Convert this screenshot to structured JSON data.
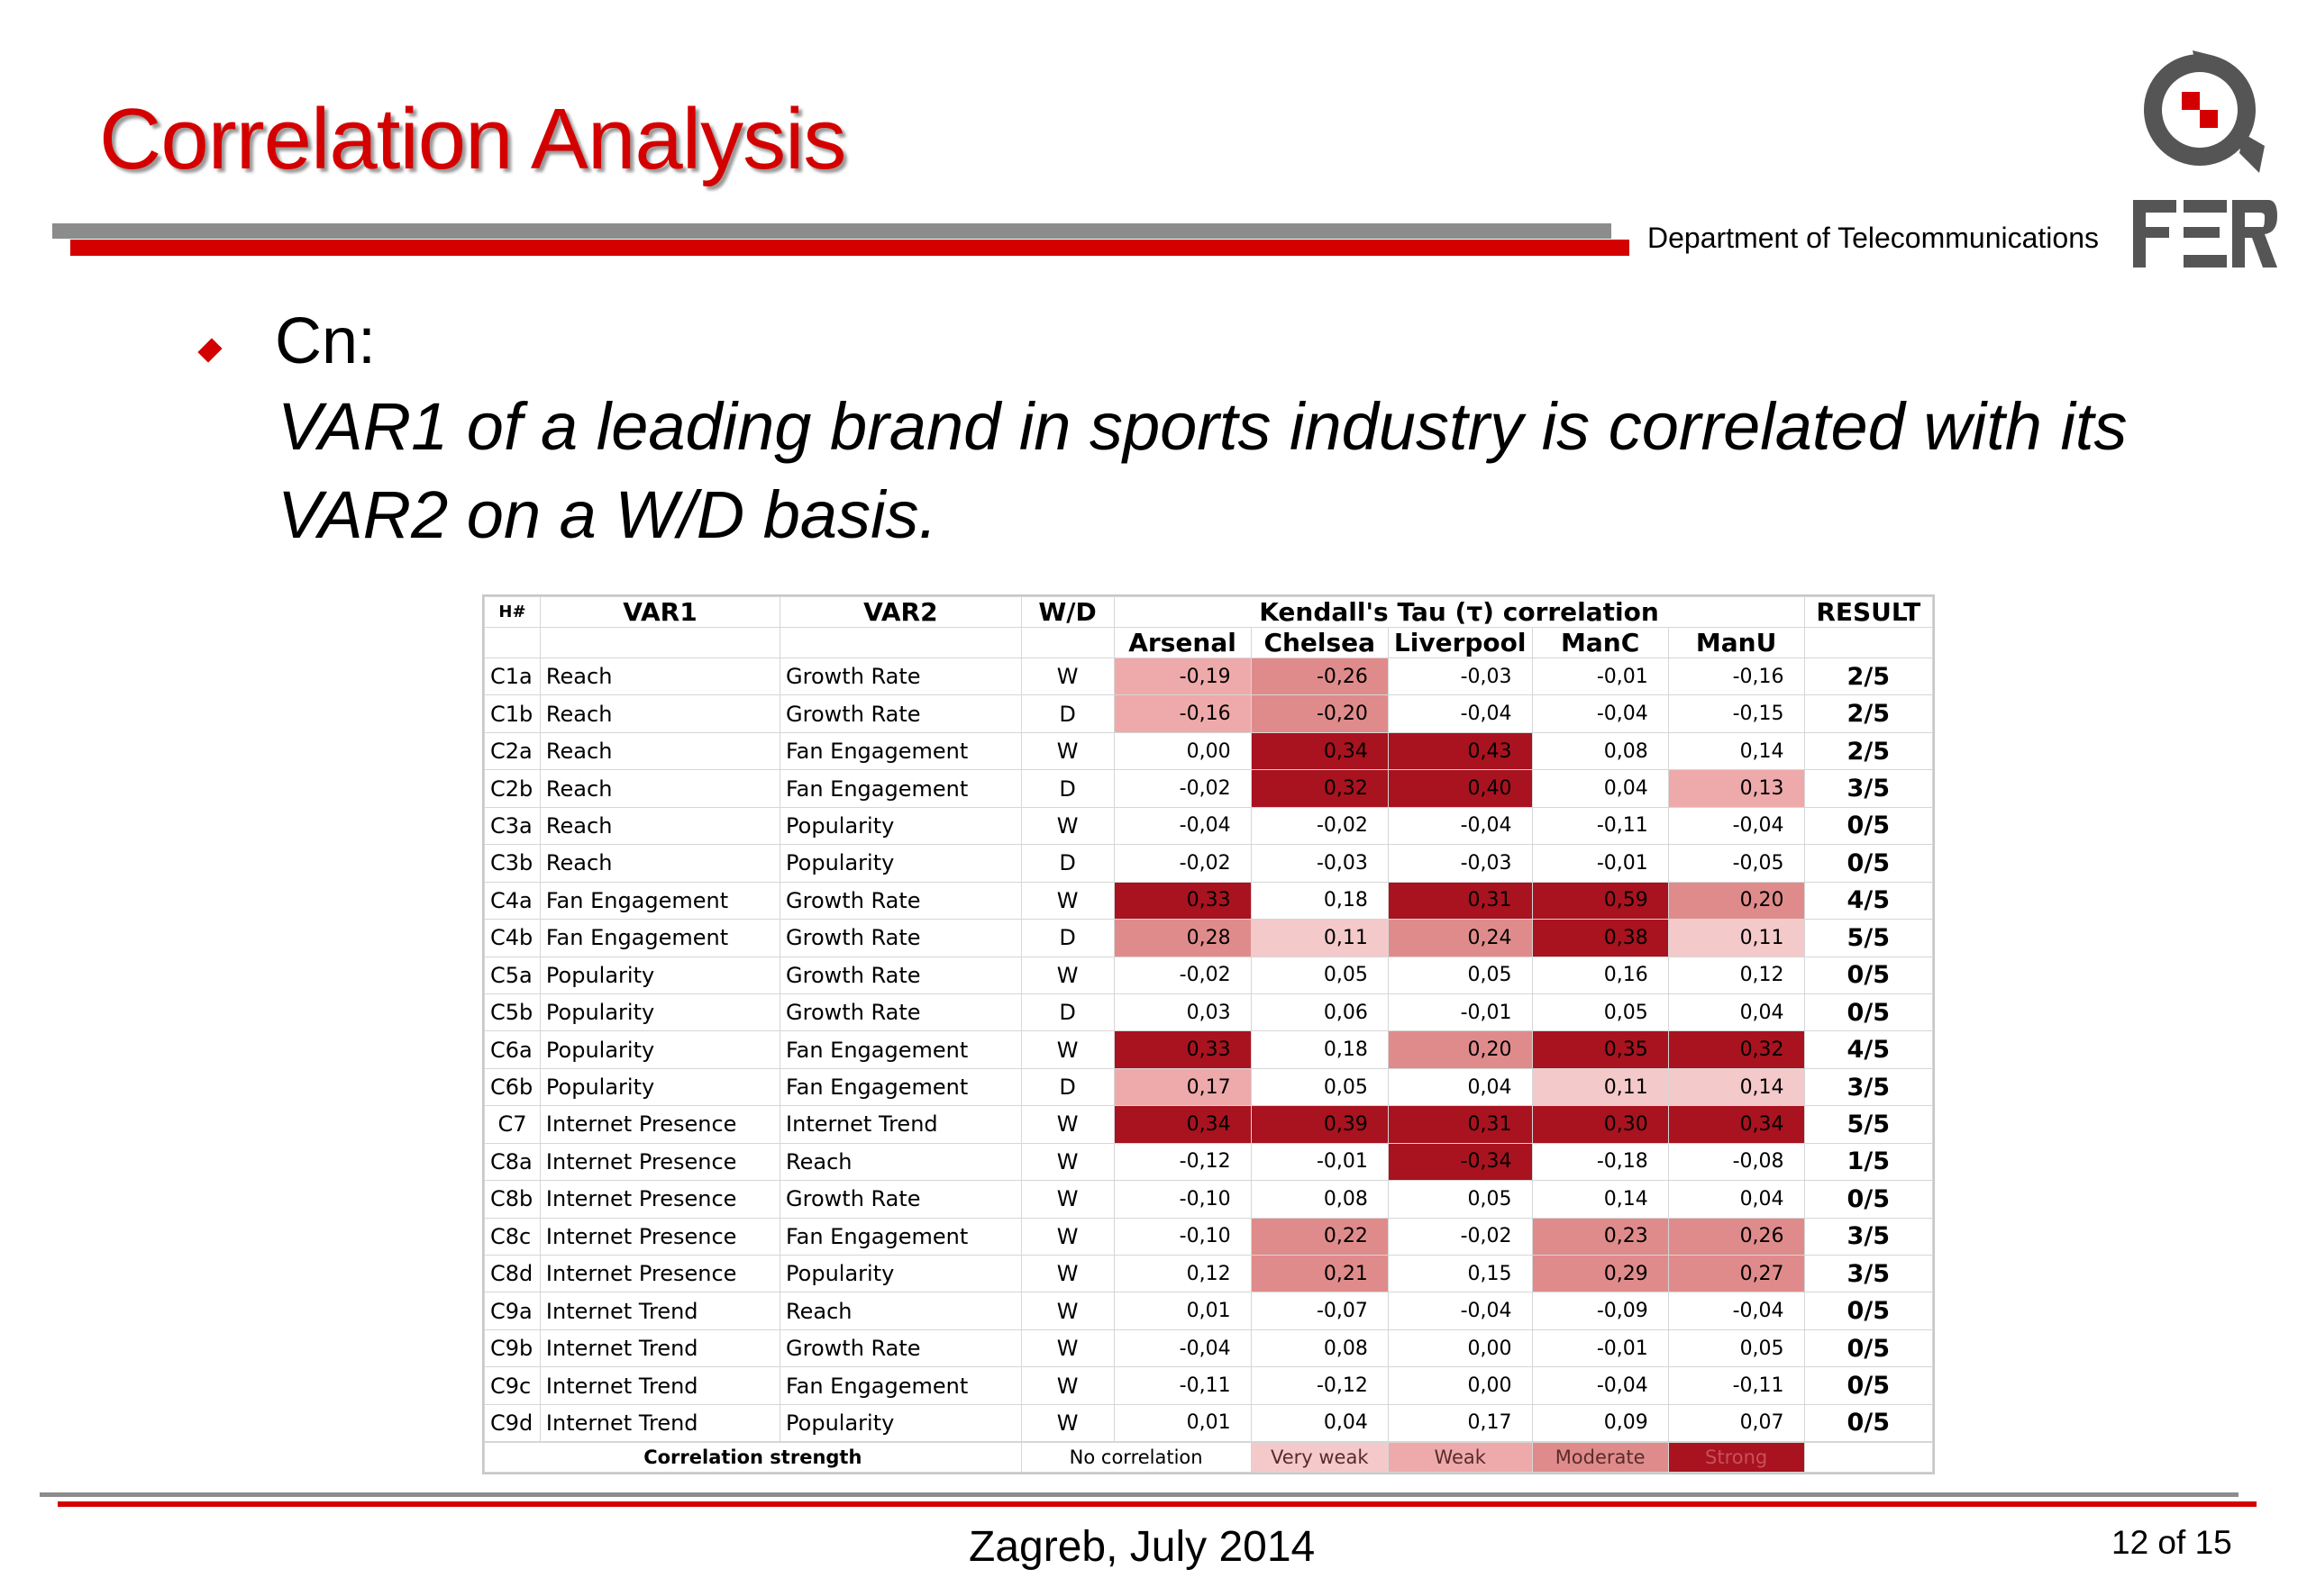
{
  "slide": {
    "title": "Correlation Analysis",
    "department": "Department of Telecommunications",
    "bullet_label": "Cn:",
    "hypothesis": "VAR1 of a leading brand in sports industry is correlated with its VAR2 on a W/D basis.",
    "footer": "Zagreb, July 2014",
    "page": "12 of 15"
  },
  "colors": {
    "accent_red": "#d40000",
    "very_weak": "#f4c9c9",
    "weak": "#eeaaaa",
    "moderate": "#e08b8b",
    "strong": "#a8131f"
  },
  "table": {
    "headers": {
      "h": "H#",
      "var1": "VAR1",
      "var2": "VAR2",
      "wd": "W/D",
      "kendall": "Kendall's Tau (τ) correlation",
      "result": "RESULT",
      "clubs": [
        "Arsenal",
        "Chelsea",
        "Liverpool",
        "ManC",
        "ManU"
      ]
    },
    "rows": [
      {
        "id": "C1a",
        "var1": "Reach",
        "var2": "Growth Rate",
        "wd": "W",
        "values": [
          "-0,19",
          "-0,26",
          "-0,03",
          "-0,01",
          "-0,16"
        ],
        "levels": [
          "weak",
          "moderate",
          "none",
          "none",
          "none"
        ],
        "result": "2/5"
      },
      {
        "id": "C1b",
        "var1": "Reach",
        "var2": "Growth Rate",
        "wd": "D",
        "values": [
          "-0,16",
          "-0,20",
          "-0,04",
          "-0,04",
          "-0,15"
        ],
        "levels": [
          "weak",
          "moderate",
          "none",
          "none",
          "none"
        ],
        "result": "2/5"
      },
      {
        "id": "C2a",
        "var1": "Reach",
        "var2": "Fan Engagement",
        "wd": "W",
        "values": [
          "0,00",
          "0,34",
          "0,43",
          "0,08",
          "0,14"
        ],
        "levels": [
          "none",
          "strong",
          "strong",
          "none",
          "none"
        ],
        "result": "2/5"
      },
      {
        "id": "C2b",
        "var1": "Reach",
        "var2": "Fan Engagement",
        "wd": "D",
        "values": [
          "-0,02",
          "0,32",
          "0,40",
          "0,04",
          "0,13"
        ],
        "levels": [
          "none",
          "strong",
          "strong",
          "none",
          "weak"
        ],
        "result": "3/5"
      },
      {
        "id": "C3a",
        "var1": "Reach",
        "var2": "Popularity",
        "wd": "W",
        "values": [
          "-0,04",
          "-0,02",
          "-0,04",
          "-0,11",
          "-0,04"
        ],
        "levels": [
          "none",
          "none",
          "none",
          "none",
          "none"
        ],
        "result": "0/5"
      },
      {
        "id": "C3b",
        "var1": "Reach",
        "var2": "Popularity",
        "wd": "D",
        "values": [
          "-0,02",
          "-0,03",
          "-0,03",
          "-0,01",
          "-0,05"
        ],
        "levels": [
          "none",
          "none",
          "none",
          "none",
          "none"
        ],
        "result": "0/5"
      },
      {
        "id": "C4a",
        "var1": "Fan Engagement",
        "var2": "Growth Rate",
        "wd": "W",
        "values": [
          "0,33",
          "0,18",
          "0,31",
          "0,59",
          "0,20"
        ],
        "levels": [
          "strong",
          "none",
          "strong",
          "strong",
          "moderate"
        ],
        "result": "4/5"
      },
      {
        "id": "C4b",
        "var1": "Fan Engagement",
        "var2": "Growth Rate",
        "wd": "D",
        "values": [
          "0,28",
          "0,11",
          "0,24",
          "0,38",
          "0,11"
        ],
        "levels": [
          "moderate",
          "very_weak",
          "moderate",
          "strong",
          "very_weak"
        ],
        "result": "5/5"
      },
      {
        "id": "C5a",
        "var1": "Popularity",
        "var2": "Growth Rate",
        "wd": "W",
        "values": [
          "-0,02",
          "0,05",
          "0,05",
          "0,16",
          "0,12"
        ],
        "levels": [
          "none",
          "none",
          "none",
          "none",
          "none"
        ],
        "result": "0/5"
      },
      {
        "id": "C5b",
        "var1": "Popularity",
        "var2": "Growth Rate",
        "wd": "D",
        "values": [
          "0,03",
          "0,06",
          "-0,01",
          "0,05",
          "0,04"
        ],
        "levels": [
          "none",
          "none",
          "none",
          "none",
          "none"
        ],
        "result": "0/5"
      },
      {
        "id": "C6a",
        "var1": "Popularity",
        "var2": "Fan Engagement",
        "wd": "W",
        "values": [
          "0,33",
          "0,18",
          "0,20",
          "0,35",
          "0,32"
        ],
        "levels": [
          "strong",
          "none",
          "moderate",
          "strong",
          "strong"
        ],
        "result": "4/5"
      },
      {
        "id": "C6b",
        "var1": "Popularity",
        "var2": "Fan Engagement",
        "wd": "D",
        "values": [
          "0,17",
          "0,05",
          "0,04",
          "0,11",
          "0,14"
        ],
        "levels": [
          "weak",
          "none",
          "none",
          "very_weak",
          "very_weak"
        ],
        "result": "3/5"
      },
      {
        "id": "C7",
        "var1": "Internet Presence",
        "var2": "Internet Trend",
        "wd": "W",
        "values": [
          "0,34",
          "0,39",
          "0,31",
          "0,30",
          "0,34"
        ],
        "levels": [
          "strong",
          "strong",
          "strong",
          "strong",
          "strong"
        ],
        "result": "5/5"
      },
      {
        "id": "C8a",
        "var1": "Internet Presence",
        "var2": "Reach",
        "wd": "W",
        "values": [
          "-0,12",
          "-0,01",
          "-0,34",
          "-0,18",
          "-0,08"
        ],
        "levels": [
          "none",
          "none",
          "strong",
          "none",
          "none"
        ],
        "result": "1/5"
      },
      {
        "id": "C8b",
        "var1": "Internet Presence",
        "var2": "Growth Rate",
        "wd": "W",
        "values": [
          "-0,10",
          "0,08",
          "0,05",
          "0,14",
          "0,04"
        ],
        "levels": [
          "none",
          "none",
          "none",
          "none",
          "none"
        ],
        "result": "0/5"
      },
      {
        "id": "C8c",
        "var1": "Internet Presence",
        "var2": "Fan Engagement",
        "wd": "W",
        "values": [
          "-0,10",
          "0,22",
          "-0,02",
          "0,23",
          "0,26"
        ],
        "levels": [
          "none",
          "moderate",
          "none",
          "moderate",
          "moderate"
        ],
        "result": "3/5"
      },
      {
        "id": "C8d",
        "var1": "Internet Presence",
        "var2": "Popularity",
        "wd": "W",
        "values": [
          "0,12",
          "0,21",
          "0,15",
          "0,29",
          "0,27"
        ],
        "levels": [
          "none",
          "moderate",
          "none",
          "moderate",
          "moderate"
        ],
        "result": "3/5"
      },
      {
        "id": "C9a",
        "var1": "Internet Trend",
        "var2": "Reach",
        "wd": "W",
        "values": [
          "0,01",
          "-0,07",
          "-0,04",
          "-0,09",
          "-0,04"
        ],
        "levels": [
          "none",
          "none",
          "none",
          "none",
          "none"
        ],
        "result": "0/5"
      },
      {
        "id": "C9b",
        "var1": "Internet Trend",
        "var2": "Growth Rate",
        "wd": "W",
        "values": [
          "-0,04",
          "0,08",
          "0,00",
          "-0,01",
          "0,05"
        ],
        "levels": [
          "none",
          "none",
          "none",
          "none",
          "none"
        ],
        "result": "0/5"
      },
      {
        "id": "C9c",
        "var1": "Internet Trend",
        "var2": "Fan Engagement",
        "wd": "W",
        "values": [
          "-0,11",
          "-0,12",
          "0,00",
          "-0,04",
          "-0,11"
        ],
        "levels": [
          "none",
          "none",
          "none",
          "none",
          "none"
        ],
        "result": "0/5"
      },
      {
        "id": "C9d",
        "var1": "Internet Trend",
        "var2": "Popularity",
        "wd": "W",
        "values": [
          "0,01",
          "0,04",
          "0,17",
          "0,09",
          "0,07"
        ],
        "levels": [
          "none",
          "none",
          "none",
          "none",
          "none"
        ],
        "result": "0/5"
      }
    ],
    "legend": {
      "label": "Correlation strength",
      "items": [
        {
          "label": "No correlation",
          "level": "none"
        },
        {
          "label": "Very weak",
          "level": "very_weak"
        },
        {
          "label": "Weak",
          "level": "weak"
        },
        {
          "label": "Moderate",
          "level": "moderate"
        },
        {
          "label": "Strong",
          "level": "strong"
        }
      ]
    }
  }
}
